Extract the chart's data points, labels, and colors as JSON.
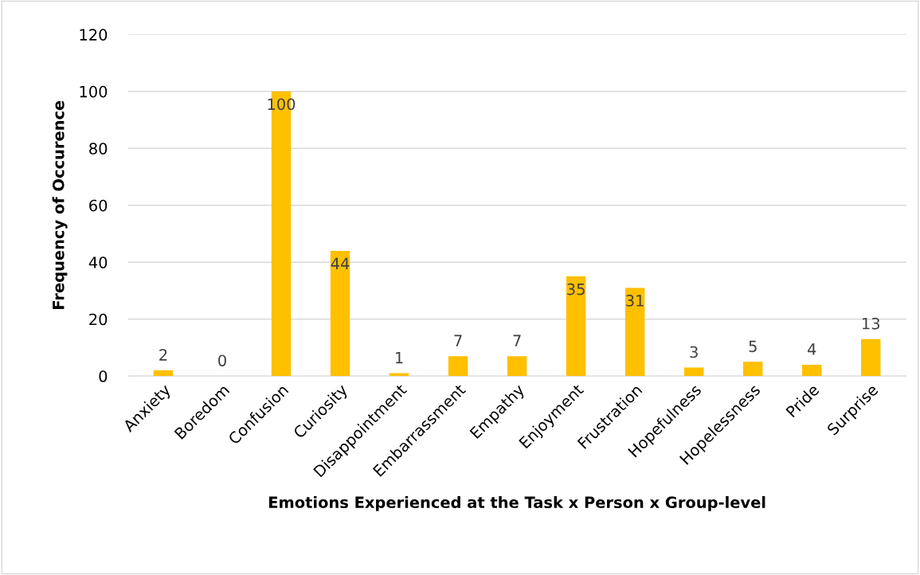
{
  "chart_data": {
    "type": "bar",
    "xlabel": "Emotions Experienced at the Task x Person x Group-level",
    "ylabel": "Frequency of Occurence",
    "categories": [
      "Anxiety",
      "Boredom",
      "Confusion",
      "Curiosity",
      "Disappointment",
      "Embarrassment",
      "Empathy",
      "Enjoyment",
      "Frustration",
      "Hopefulness",
      "Hopelessness",
      "Pride",
      "Surprise"
    ],
    "values": [
      2,
      0,
      100,
      44,
      1,
      7,
      7,
      35,
      31,
      3,
      5,
      4,
      13
    ],
    "color": "#ffc000",
    "ylim": [
      0,
      120
    ],
    "yticks": [
      0,
      20,
      40,
      60,
      80,
      100,
      120
    ],
    "grid": "y",
    "data_labels": true
  }
}
